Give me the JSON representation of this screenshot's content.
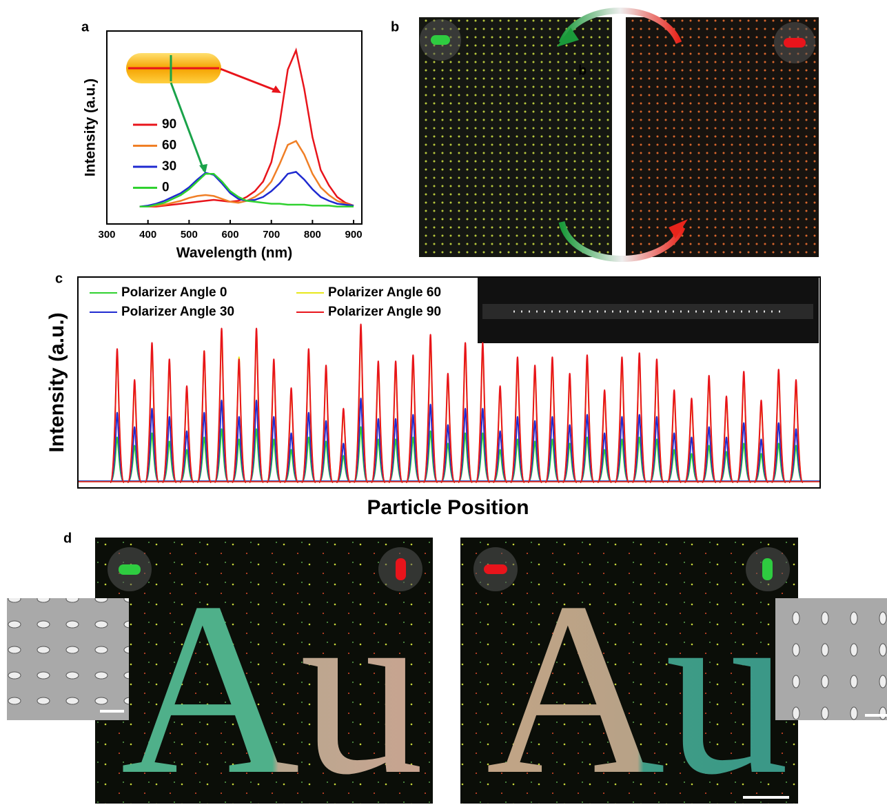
{
  "panel_labels": [
    "a",
    "b",
    "c",
    "d"
  ],
  "stray_label": "b",
  "image_text": [
    "Au",
    "Au"
  ],
  "chart_data": [
    {
      "type": "line",
      "xlabel": "Wavelength (nm)",
      "ylabel": "Intensity (a.u.)",
      "x": [
        380,
        400,
        420,
        440,
        460,
        480,
        500,
        520,
        540,
        560,
        580,
        600,
        620,
        640,
        660,
        680,
        700,
        720,
        740,
        760,
        780,
        800,
        820,
        840,
        860,
        880,
        900
      ],
      "xlim": [
        300,
        920
      ],
      "xticks": [
        300,
        400,
        500,
        600,
        700,
        800,
        900
      ],
      "ylim": [
        0,
        100
      ],
      "series": [
        {
          "name": "90",
          "color": "#e8141b",
          "values": [
            9,
            9,
            9,
            9.5,
            10,
            10.5,
            11,
            11.5,
            12,
            12.5,
            12,
            11.5,
            12,
            14,
            17,
            22,
            32,
            52,
            80,
            90,
            70,
            45,
            28,
            20,
            14,
            11,
            9.5
          ]
        },
        {
          "name": "60",
          "color": "#f07f26",
          "values": [
            9,
            9,
            9.5,
            10,
            11,
            12,
            13.5,
            14.5,
            15,
            14.5,
            13,
            11.5,
            11,
            12,
            14,
            17,
            22,
            31,
            41,
            43,
            36,
            26,
            19,
            15,
            12,
            10.5,
            9.5
          ]
        },
        {
          "name": "30",
          "color": "#1f2ad0",
          "values": [
            9,
            9.5,
            10.5,
            12,
            14,
            16,
            19,
            23,
            26.5,
            25.5,
            21,
            16,
            13,
            12,
            12.5,
            14,
            17,
            21,
            26,
            27,
            23,
            18,
            14,
            12,
            10.5,
            10,
            9.5
          ]
        },
        {
          "name": "0",
          "color": "#2fd12f",
          "values": [
            9,
            9,
            10,
            11,
            13,
            15,
            18,
            22,
            26,
            26,
            22,
            17,
            14,
            12,
            11.5,
            11,
            10.5,
            10.5,
            10,
            10,
            10,
            9.5,
            9.5,
            9.5,
            9,
            9,
            9
          ]
        }
      ]
    },
    {
      "type": "spikes",
      "xlabel": "Particle Position",
      "ylabel": "Intensity (a.u.)",
      "ylim": [
        0,
        100
      ],
      "categories": [
        null,
        null,
        null,
        null,
        null,
        null,
        null,
        null,
        null,
        null,
        null,
        null,
        null,
        null,
        null,
        null,
        null,
        null,
        null,
        null,
        null,
        null,
        null,
        null,
        null,
        null,
        null,
        null,
        null,
        null,
        null,
        null,
        null,
        null,
        null,
        null,
        null,
        null,
        null,
        null
      ],
      "series": [
        {
          "name": "Polarizer Angle 0",
          "color": "#2fd12f",
          "values": [
            22,
            18,
            24,
            20,
            16,
            22,
            26,
            21,
            26,
            21,
            16,
            22,
            20,
            13,
            27,
            21,
            21,
            22,
            25,
            19,
            24,
            24,
            16,
            21,
            20,
            21,
            19,
            22,
            16,
            21,
            22,
            21,
            16,
            14,
            18,
            15,
            19,
            14,
            19,
            18
          ]
        },
        {
          "name": "Polarizer Angle 60",
          "color": "#e8e81b",
          "values": [
            64,
            49,
            67,
            59,
            46,
            64,
            74,
            61,
            74,
            59,
            45,
            64,
            56,
            35,
            76,
            58,
            58,
            61,
            71,
            52,
            67,
            67,
            46,
            60,
            56,
            60,
            52,
            61,
            44,
            60,
            62,
            59,
            44,
            40,
            51,
            41,
            53,
            39,
            54,
            49
          ]
        },
        {
          "name": "Polarizer Angle 30",
          "color": "#1f2ad0",
          "values": [
            34,
            27,
            36,
            32,
            25,
            34,
            40,
            32,
            40,
            32,
            24,
            34,
            30,
            19,
            41,
            31,
            31,
            33,
            38,
            28,
            36,
            36,
            25,
            32,
            30,
            32,
            28,
            33,
            24,
            32,
            33,
            32,
            24,
            22,
            27,
            22,
            29,
            21,
            29,
            26
          ]
        },
        {
          "name": "Polarizer Angle 90",
          "color": "#e8141b",
          "values": [
            65,
            50,
            68,
            60,
            47,
            64,
            75,
            60,
            75,
            60,
            46,
            65,
            57,
            36,
            77,
            59,
            59,
            62,
            72,
            53,
            68,
            68,
            47,
            61,
            57,
            61,
            53,
            62,
            45,
            61,
            63,
            60,
            45,
            41,
            52,
            42,
            54,
            40,
            55,
            50
          ]
        }
      ]
    }
  ]
}
